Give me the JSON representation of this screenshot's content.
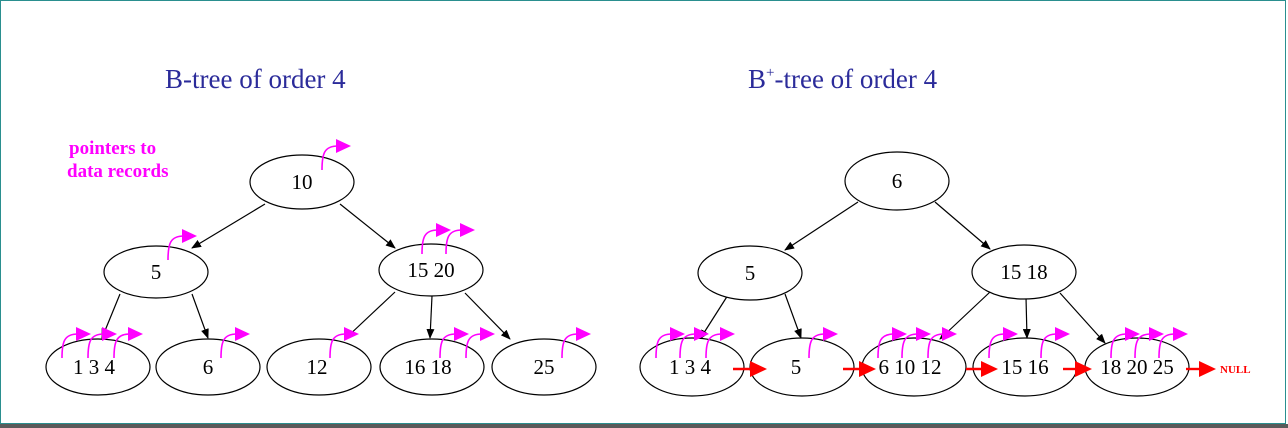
{
  "titles": {
    "btree": "B-tree of order 4",
    "bplus_prefix": "B",
    "bplus_sup": "+",
    "bplus_suffix": "-tree of order 4"
  },
  "note": {
    "line1": "pointers to",
    "line2": "data records"
  },
  "btree": {
    "root": "10",
    "internal": [
      "5",
      "15 20"
    ],
    "leaves": [
      "1 3 4",
      "6",
      "12",
      "16 18",
      "25"
    ]
  },
  "bplus": {
    "root": "6",
    "internal": [
      "5",
      "15 18"
    ],
    "leaves": [
      "1 3 4",
      "5",
      "6 10 12",
      "15 16",
      "18 20 25"
    ],
    "null_label": "NULL"
  },
  "colors": {
    "title": "#2b2b9a",
    "data_pointer": "#ff00ff",
    "leaf_link": "#ff0000",
    "frame": "#2a8f8f"
  }
}
